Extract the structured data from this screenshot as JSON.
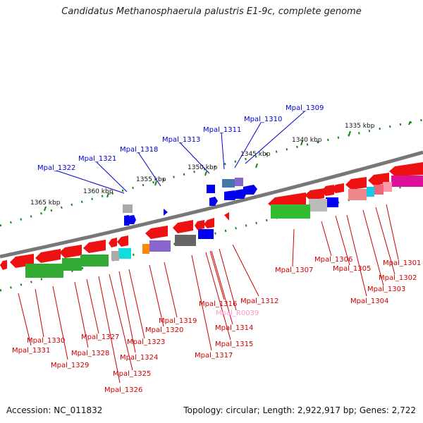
{
  "title": "Candidatus Methanosphaerula palustris E1-9c, complete genome",
  "footer": {
    "accession": "Accession: NC_011832",
    "summary": "Topology: circular; Length: 2,922,917 bp; Genes: 2,722"
  },
  "ruler_labels": [
    "1335 kbp",
    "1340 kbp",
    "1345 kbp",
    "1350 kbp",
    "1355 kbp",
    "1360 kbp",
    "1365 kbp"
  ],
  "top_labels": [
    "Mpal_1309",
    "Mpal_1310",
    "Mpal_1311",
    "Mpal_1313",
    "Mpal_1318",
    "Mpal_1321",
    "Mpal_1322"
  ],
  "bottom_labels": [
    "Mpal_1301",
    "Mpal_1302",
    "Mpal_1303",
    "Mpal_1304",
    "Mpal_1305",
    "Mpal_1306",
    "Mpal_1307",
    "Mpal_1312",
    "Mpal_R0039",
    "Mpal_1314",
    "Mpal_1315",
    "Mpal_1316",
    "Mpal_1317",
    "Mpal_1319",
    "Mpal_1320",
    "Mpal_1323",
    "Mpal_1324",
    "Mpal_1325",
    "Mpal_1326",
    "Mpal_1327",
    "Mpal_1328",
    "Mpal_1329",
    "Mpal_1330",
    "Mpal_1331"
  ],
  "colors": {
    "backbone": "#777777",
    "forward_gene": "#0000ee",
    "reverse_gene": "#ee1111",
    "label_top": "#0000cc",
    "label_bottom": "#cc0000",
    "rna_label": "#ff99cc",
    "ruler_tick": "#118811"
  }
}
